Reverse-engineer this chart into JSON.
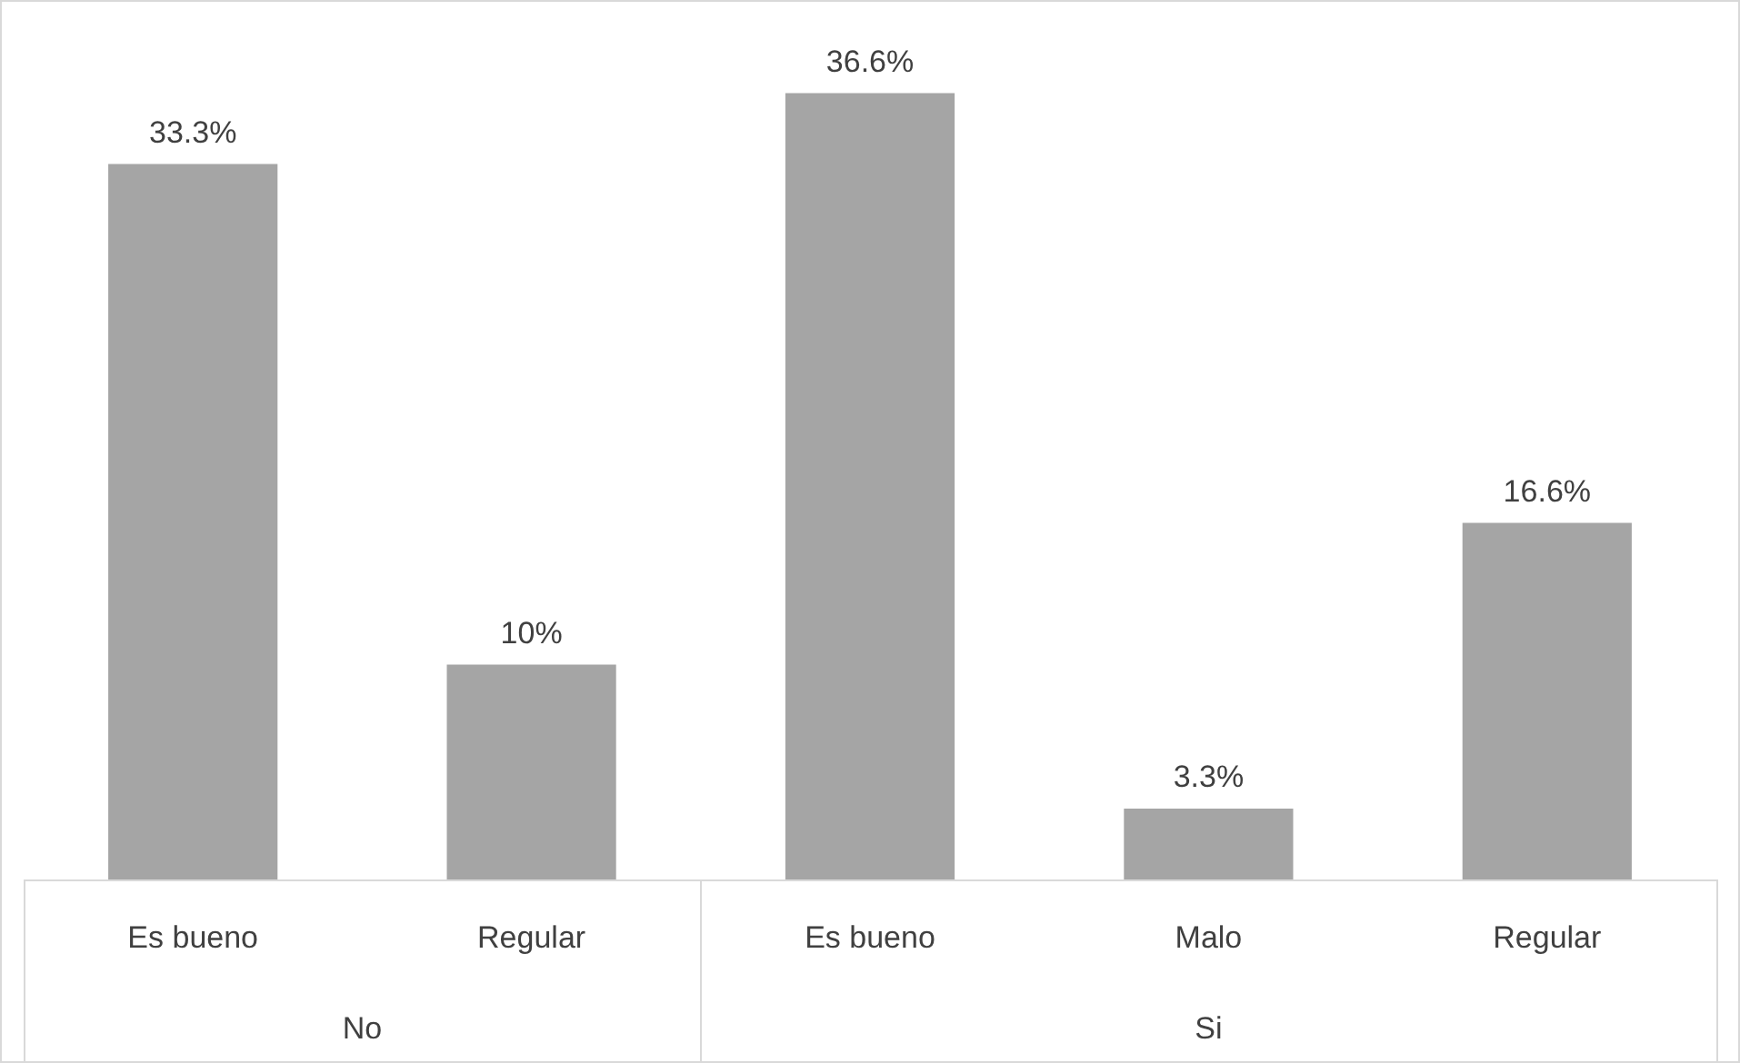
{
  "chart_data": {
    "type": "bar",
    "categories": [
      "Es bueno",
      "Regular",
      "Es bueno",
      "Malo",
      "Regular"
    ],
    "values": [
      33.3,
      10,
      36.6,
      3.3,
      16.6
    ],
    "value_labels": [
      "33.3%",
      "10%",
      "36.6%",
      "3.3%",
      "16.6%"
    ],
    "color": "#a5a5a5",
    "annotations": [
      "No",
      "Si"
    ],
    "legend": false
  }
}
